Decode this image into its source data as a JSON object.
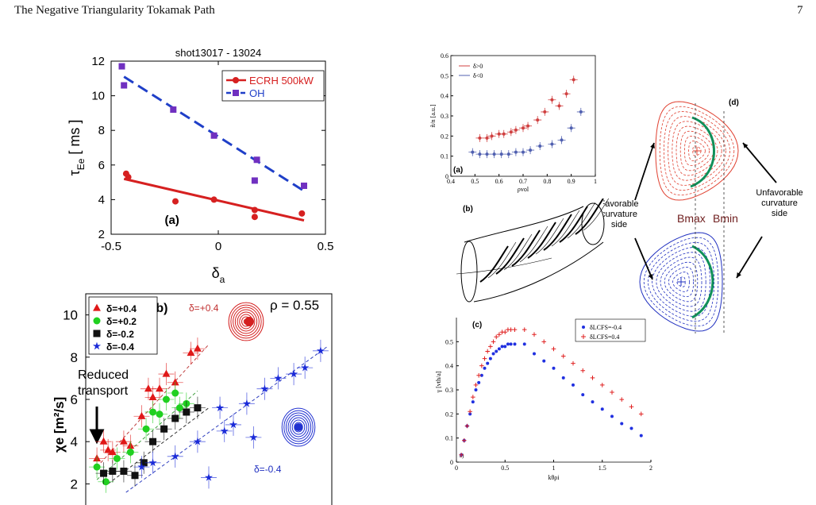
{
  "header": {
    "title": "The Negative Triangularity Tokamak Path",
    "page_number": "7"
  },
  "colors": {
    "red": "#d62020",
    "blue": "#1f3fc8",
    "purple": "#7030c0",
    "green": "#18a040",
    "teal": "#10905a"
  },
  "chart_data": [
    {
      "id": "a-top-left",
      "type": "scatter",
      "title": "shot13017 - 13024",
      "panel_label": "(a)",
      "xlabel_main": "δ",
      "xlabel_sub": "a",
      "ylabel_main": "τ",
      "ylabel_sub": "Ee",
      "ylabel_unit": " [ ms ]",
      "xlim": [
        -0.5,
        0.5
      ],
      "ylim": [
        2,
        12
      ],
      "xticks": [
        -0.5,
        0,
        0.5
      ],
      "xtick_labels": [
        "-0.5",
        "0",
        "0.5"
      ],
      "yticks": [
        2,
        4,
        6,
        8,
        10,
        12
      ],
      "ytick_labels": [
        "2",
        "4",
        "6",
        "8",
        "10",
        "12"
      ],
      "series": [
        {
          "name": "ECRH 500kW",
          "color": "#d62020",
          "marker": "circle",
          "x": [
            -0.43,
            -0.42,
            -0.2,
            -0.02,
            0.17,
            0.17,
            0.39
          ],
          "y": [
            5.5,
            5.3,
            3.9,
            4.0,
            3.4,
            3.0,
            3.2
          ],
          "fit": [
            [
              -0.44,
              5.2
            ],
            [
              0.4,
              2.8
            ]
          ]
        },
        {
          "name": "OH",
          "color": "#7030c0",
          "line_color": "#1f3fc8",
          "marker": "square",
          "x": [
            -0.45,
            -0.44,
            -0.21,
            -0.02,
            0.18,
            0.17,
            0.4
          ],
          "y": [
            11.7,
            10.6,
            9.2,
            7.7,
            6.3,
            5.1,
            4.8
          ],
          "fit": [
            [
              -0.44,
              11.1
            ],
            [
              0.4,
              4.5
            ]
          ]
        }
      ]
    },
    {
      "id": "b-bottom-left",
      "type": "scatter",
      "panel_label": "(b)",
      "ylabel": "χe [m²/s]",
      "annotation_rho": "ρ = 0.55",
      "annotation_reduced": [
        "Reduced",
        "transport"
      ],
      "inset_pos": "δ=+0.4",
      "inset_neg": "δ=-0.4",
      "ylim": [
        1,
        11
      ],
      "yticks": [
        2,
        4,
        6,
        8,
        10
      ],
      "ytick_labels": [
        "2",
        "4",
        "6",
        "8",
        "10"
      ],
      "series": [
        {
          "name": "δ=+0.4",
          "color": "#e01818",
          "marker": "triangle",
          "x": [
            0.05,
            0.1,
            0.17,
            0.2,
            0.28,
            0.3,
            0.33,
            0.36,
            0.4,
            0.47,
            0.5,
            0.08,
            0.12,
            0.25
          ],
          "y": [
            3.2,
            3.6,
            4.0,
            3.8,
            6.5,
            6.1,
            6.5,
            7.2,
            6.8,
            8.2,
            8.4,
            4.0,
            3.5,
            5.2
          ]
        },
        {
          "name": "δ=+0.2",
          "color": "#20d020",
          "marker": "circle",
          "x": [
            0.05,
            0.09,
            0.14,
            0.2,
            0.27,
            0.3,
            0.33,
            0.36,
            0.4,
            0.42,
            0.45
          ],
          "y": [
            2.8,
            2.1,
            3.2,
            3.5,
            4.6,
            5.4,
            5.3,
            6.0,
            6.3,
            5.6,
            5.8
          ]
        },
        {
          "name": "δ=-0.2",
          "color": "#111111",
          "marker": "square",
          "x": [
            0.08,
            0.12,
            0.17,
            0.22,
            0.26,
            0.3,
            0.35,
            0.4,
            0.45,
            0.5
          ],
          "y": [
            2.5,
            2.6,
            2.6,
            2.4,
            3.0,
            4.0,
            4.6,
            5.1,
            5.4,
            5.6
          ]
        },
        {
          "name": "δ=-0.4",
          "color": "#1a2ad8",
          "marker": "star",
          "x": [
            0.25,
            0.3,
            0.4,
            0.5,
            0.62,
            0.66,
            0.72,
            0.8,
            0.86,
            0.93,
            0.98,
            0.75,
            0.6,
            1.05,
            0.55
          ],
          "y": [
            2.8,
            3.0,
            3.3,
            4.0,
            4.5,
            4.8,
            5.8,
            6.5,
            7.0,
            7.2,
            7.5,
            4.2,
            5.6,
            8.3,
            2.3
          ]
        }
      ]
    },
    {
      "id": "a-top-middle",
      "type": "scatter",
      "panel_label": "(a)",
      "ylabel": "ñ/n [a.u.]",
      "xlabel": "ρvol",
      "xlim": [
        0.4,
        1.0
      ],
      "ylim": [
        0,
        0.6
      ],
      "xticks": [
        0.4,
        0.5,
        0.6,
        0.7,
        0.8,
        0.9,
        1.0
      ],
      "xtick_labels": [
        "0.4",
        "0.5",
        "0.6",
        "0.7",
        "0.8",
        "0.9",
        "1"
      ],
      "yticks": [
        0,
        0.1,
        0.2,
        0.3,
        0.4,
        0.5,
        0.6
      ],
      "ytick_labels": [
        "0",
        "0.1",
        "0.2",
        "0.3",
        "0.4",
        "0.5",
        "0.6"
      ],
      "series": [
        {
          "name": "δ>0",
          "color": "#d04040",
          "x": [
            0.52,
            0.55,
            0.57,
            0.6,
            0.62,
            0.65,
            0.67,
            0.7,
            0.72,
            0.76,
            0.79,
            0.82,
            0.85,
            0.88,
            0.91
          ],
          "y": [
            0.19,
            0.19,
            0.2,
            0.21,
            0.21,
            0.22,
            0.23,
            0.24,
            0.25,
            0.28,
            0.32,
            0.38,
            0.35,
            0.41,
            0.48
          ]
        },
        {
          "name": "δ<0",
          "color": "#5060b0",
          "x": [
            0.49,
            0.52,
            0.55,
            0.58,
            0.61,
            0.64,
            0.67,
            0.7,
            0.73,
            0.77,
            0.82,
            0.86,
            0.9,
            0.94
          ],
          "y": [
            0.12,
            0.11,
            0.11,
            0.11,
            0.11,
            0.11,
            0.12,
            0.12,
            0.13,
            0.15,
            0.16,
            0.18,
            0.24,
            0.32
          ]
        }
      ]
    },
    {
      "id": "c-bottom-middle",
      "type": "scatter",
      "panel_label": "(c)",
      "corner_label": "a)",
      "ylabel": "γ [vth/a]",
      "xlabel": "kθρi",
      "xlim": [
        0,
        2
      ],
      "ylim": [
        0,
        0.6
      ],
      "xticks": [
        0,
        0.5,
        1,
        1.5,
        2
      ],
      "xtick_labels": [
        "0",
        "0.5",
        "1",
        "1.5",
        "2"
      ],
      "yticks": [
        0,
        0.1,
        0.2,
        0.3,
        0.4,
        0.5
      ],
      "ytick_labels": [
        "0",
        "0.1",
        "0.2",
        "0.3",
        "0.4",
        "0.5"
      ],
      "series": [
        {
          "name": "δLCFS=-0.4",
          "color": "#2030e0",
          "marker": "dot",
          "x": [
            0.05,
            0.08,
            0.11,
            0.14,
            0.17,
            0.2,
            0.23,
            0.26,
            0.29,
            0.32,
            0.35,
            0.38,
            0.41,
            0.44,
            0.47,
            0.5,
            0.53,
            0.56,
            0.6,
            0.7,
            0.8,
            0.9,
            1.0,
            1.1,
            1.2,
            1.3,
            1.4,
            1.5,
            1.6,
            1.7,
            1.8,
            1.9
          ],
          "y": [
            0.03,
            0.09,
            0.15,
            0.2,
            0.25,
            0.3,
            0.33,
            0.36,
            0.39,
            0.41,
            0.43,
            0.45,
            0.46,
            0.47,
            0.48,
            0.48,
            0.49,
            0.49,
            0.49,
            0.49,
            0.45,
            0.42,
            0.39,
            0.35,
            0.32,
            0.28,
            0.25,
            0.22,
            0.19,
            0.16,
            0.14,
            0.11
          ]
        },
        {
          "name": "δLCFS=0.4",
          "color": "#e02020",
          "marker": "plus",
          "x": [
            0.05,
            0.08,
            0.11,
            0.14,
            0.17,
            0.2,
            0.23,
            0.26,
            0.29,
            0.32,
            0.35,
            0.38,
            0.41,
            0.44,
            0.47,
            0.5,
            0.53,
            0.56,
            0.6,
            0.7,
            0.8,
            0.9,
            1.0,
            1.1,
            1.2,
            1.3,
            1.4,
            1.5,
            1.6,
            1.7,
            1.8,
            1.9
          ],
          "y": [
            0.03,
            0.09,
            0.15,
            0.21,
            0.27,
            0.32,
            0.36,
            0.4,
            0.43,
            0.46,
            0.48,
            0.5,
            0.52,
            0.53,
            0.54,
            0.54,
            0.55,
            0.55,
            0.55,
            0.55,
            0.53,
            0.5,
            0.47,
            0.44,
            0.41,
            0.38,
            0.35,
            0.32,
            0.29,
            0.26,
            0.23,
            0.2
          ]
        }
      ]
    }
  ],
  "diagram_b": {
    "panel_label": "(b)"
  },
  "diagram_d": {
    "panel_label": "(d)",
    "label_bmax": "Bmax",
    "label_bmin": "Bmin",
    "label_favorable": [
      "Favorable",
      "curvature",
      "side"
    ],
    "label_unfavorable": [
      "Unfavorable",
      "curvature",
      "side"
    ]
  }
}
